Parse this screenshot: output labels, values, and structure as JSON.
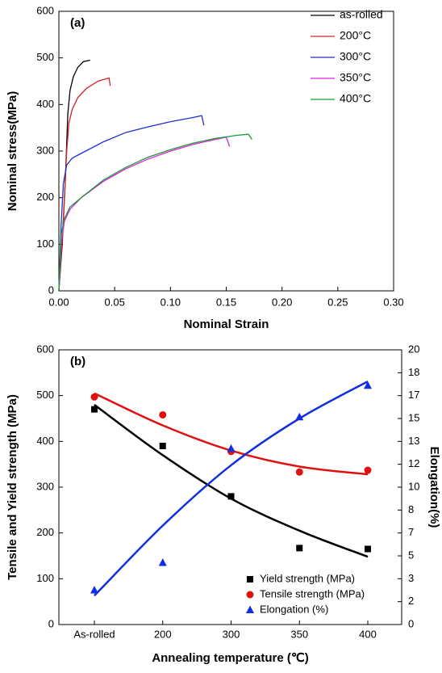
{
  "chart_data": [
    {
      "type": "line",
      "label": "(a)",
      "ylabel": "Nominal stress(MPa)",
      "xlabel": "Nominal Strain",
      "xlim": [
        0,
        0.3
      ],
      "ylim": [
        0,
        600
      ],
      "xticks": [
        {
          "value": 0,
          "label": "0.00"
        },
        {
          "value": 0.05,
          "label": "0.05"
        },
        {
          "value": 0.1,
          "label": "0.10"
        },
        {
          "value": 0.15,
          "label": "0.15"
        },
        {
          "value": 0.2,
          "label": "0.20"
        },
        {
          "value": 0.25,
          "label": "0.25"
        },
        {
          "value": 0.3,
          "label": "0.30"
        }
      ],
      "yticks": [
        0,
        100,
        200,
        300,
        400,
        500,
        600
      ],
      "legend": "upper right",
      "series": [
        {
          "name": "as-rolled",
          "color": "#000000",
          "x": [
            0,
            0.003,
            0.006,
            0.008,
            0.01,
            0.013,
            0.017,
            0.022,
            0.028
          ],
          "values": [
            0,
            100,
            250,
            380,
            430,
            460,
            480,
            492,
            495
          ]
        },
        {
          "name": "200°C",
          "color": "#d62020",
          "x": [
            0,
            0.004,
            0.007,
            0.009,
            0.012,
            0.017,
            0.025,
            0.035,
            0.045,
            0.046
          ],
          "values": [
            0,
            150,
            300,
            360,
            390,
            415,
            435,
            450,
            457,
            440
          ]
        },
        {
          "name": "300°C",
          "color": "#1f2fd0",
          "x": [
            0,
            0.002,
            0.004,
            0.007,
            0.012,
            0.02,
            0.04,
            0.06,
            0.08,
            0.1,
            0.12,
            0.128,
            0.13
          ],
          "values": [
            0,
            140,
            230,
            270,
            285,
            295,
            320,
            340,
            352,
            363,
            372,
            376,
            355
          ]
        },
        {
          "name": "350°C",
          "color": "#e020e0",
          "x": [
            0,
            0.002,
            0.005,
            0.01,
            0.02,
            0.04,
            0.06,
            0.08,
            0.1,
            0.12,
            0.14,
            0.15,
            0.153
          ],
          "values": [
            0,
            100,
            150,
            175,
            200,
            235,
            262,
            283,
            300,
            314,
            325,
            330,
            310
          ]
        },
        {
          "name": "400°C",
          "color": "#1a9a3a",
          "x": [
            0,
            0.002,
            0.005,
            0.01,
            0.02,
            0.04,
            0.06,
            0.08,
            0.1,
            0.12,
            0.14,
            0.16,
            0.17,
            0.173
          ],
          "values": [
            0,
            120,
            155,
            180,
            200,
            238,
            265,
            287,
            303,
            317,
            327,
            334,
            336,
            325
          ]
        }
      ]
    },
    {
      "type": "scatter",
      "label": "(b)",
      "ylabel": "Tensile and Yield strength (MPa)",
      "y2label": "Elongation(%)",
      "xlabel": "Annealing temperature (℃)",
      "categories": [
        "As-rolled",
        "200",
        "300",
        "350",
        "400"
      ],
      "ylim": [
        0,
        600
      ],
      "yticks": [
        0,
        100,
        200,
        300,
        400,
        500,
        600
      ],
      "y2lim": [
        0,
        20
      ],
      "y2ticks": [
        0,
        {
          "value": 1.667,
          "label": "2"
        },
        {
          "value": 3.333,
          "label": "3"
        },
        5,
        {
          "value": 6.667,
          "label": "7"
        },
        {
          "value": 8.333,
          "label": "8"
        },
        10,
        {
          "value": 11.667,
          "label": "12"
        },
        {
          "value": 13.333,
          "label": "13"
        },
        15,
        {
          "value": 16.667,
          "label": "17"
        },
        {
          "value": 18.333,
          "label": "18"
        },
        20
      ],
      "legend": "lower right",
      "series": [
        {
          "name": "Yield strength (MPa)",
          "color": "#000000",
          "marker": "square",
          "values": [
            470,
            390,
            280,
            167,
            165
          ],
          "fit": [
            480,
            370,
            275,
            205,
            148
          ]
        },
        {
          "name": "Tensile strength (MPa)",
          "color": "#e01010",
          "marker": "circle",
          "values": [
            497,
            458,
            378,
            333,
            337
          ],
          "fit": [
            505,
            435,
            380,
            345,
            328
          ]
        },
        {
          "name": "Elongation (%)",
          "color": "#1030e0",
          "marker": "triangle",
          "axis": "y2",
          "values": [
            2.5,
            4.5,
            12.8,
            15.1,
            17.4
          ],
          "fit": [
            2.1,
            7.2,
            11.6,
            15.0,
            17.7
          ]
        }
      ]
    }
  ]
}
